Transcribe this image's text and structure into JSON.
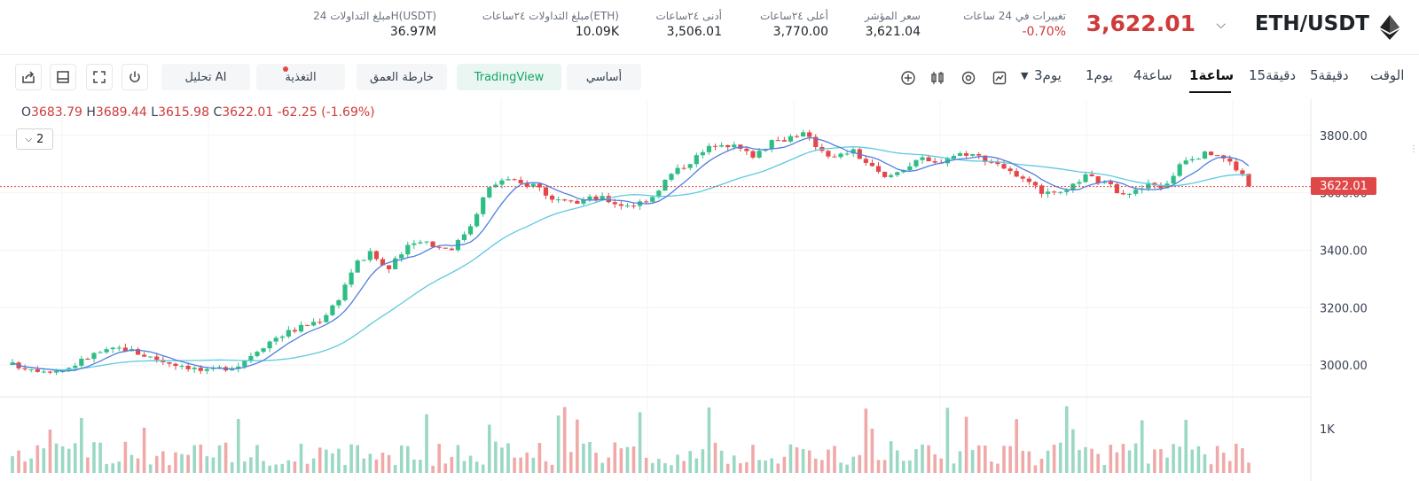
{
  "header": {
    "pair": "ETH/USDT",
    "price": "3,622.01",
    "stats": [
      {
        "label": "تغييرات في 24 ساعات",
        "value": "-0.70%",
        "negative": true
      },
      {
        "label": "سعر المؤشر",
        "value": "3,621.04"
      },
      {
        "label": "أعلى ٢٤ساعات",
        "value": "3,770.00"
      },
      {
        "label": "أدنى ٢٤ساعات",
        "value": "3,506.01"
      },
      {
        "label": "مبلغ التداولات ٢٤ساعات(ETH)",
        "value": "10.09K"
      },
      {
        "label": "مبلغ التداولات 24H(USDT)",
        "value": "36.97M"
      }
    ]
  },
  "toolbar": {
    "ai_label": "تحليل AI",
    "feed_label": "التغذية",
    "depth_label": "خارطة العمق",
    "tradingview_label": "TradingView",
    "basic_label": "أساسي",
    "timeframes": {
      "time": "الوقت",
      "m5": "5دقيقة",
      "m15": "15دقيقة",
      "h1": "1ساعة",
      "h4": "4ساعة",
      "d1": "1يوم",
      "d3": "3يوم"
    }
  },
  "chart": {
    "ohlc": {
      "o_key": "O",
      "o": "3683.79",
      "h_key": "H",
      "h": "3689.44",
      "l_key": "L",
      "l": "3615.98",
      "c_key": "C",
      "c": "3622.01",
      "change": "-62.25 (-1.69%)"
    },
    "indicator_count": "2",
    "last_price_tag": "3622.01",
    "volume_label": "1K"
  },
  "chart_data": {
    "type": "candlestick",
    "ylim": [
      2920,
      3880
    ],
    "yticks": [
      "3800.00",
      "3600.00",
      "3400.00",
      "3200.00",
      "3000.00"
    ],
    "last_price": 3622.01,
    "colors": {
      "up": "#2ebd85",
      "down": "#e34848",
      "ma_fast": "#4f7fe0",
      "ma_slow": "#5ec9e0"
    },
    "close_path": [
      [
        0,
        3000
      ],
      [
        0.025,
        2985
      ],
      [
        0.045,
        2980
      ],
      [
        0.06,
        3010
      ],
      [
        0.075,
        3040
      ],
      [
        0.1,
        3060
      ],
      [
        0.115,
        3040
      ],
      [
        0.14,
        3010
      ],
      [
        0.155,
        3000
      ],
      [
        0.175,
        2975
      ],
      [
        0.19,
        2990
      ],
      [
        0.205,
        3000
      ],
      [
        0.22,
        3050
      ],
      [
        0.24,
        3100
      ],
      [
        0.26,
        3130
      ],
      [
        0.28,
        3160
      ],
      [
        0.295,
        3230
      ],
      [
        0.31,
        3350
      ],
      [
        0.325,
        3390
      ],
      [
        0.34,
        3330
      ],
      [
        0.355,
        3400
      ],
      [
        0.37,
        3440
      ],
      [
        0.385,
        3410
      ],
      [
        0.4,
        3410
      ],
      [
        0.415,
        3490
      ],
      [
        0.43,
        3610
      ],
      [
        0.445,
        3650
      ],
      [
        0.46,
        3630
      ],
      [
        0.475,
        3630
      ],
      [
        0.49,
        3570
      ],
      [
        0.505,
        3560
      ],
      [
        0.52,
        3580
      ],
      [
        0.535,
        3580
      ],
      [
        0.55,
        3560
      ],
      [
        0.565,
        3560
      ],
      [
        0.58,
        3590
      ],
      [
        0.595,
        3660
      ],
      [
        0.61,
        3700
      ],
      [
        0.625,
        3740
      ],
      [
        0.64,
        3780
      ],
      [
        0.655,
        3760
      ],
      [
        0.67,
        3730
      ],
      [
        0.685,
        3770
      ],
      [
        0.7,
        3790
      ],
      [
        0.715,
        3810
      ],
      [
        0.73,
        3760
      ],
      [
        0.745,
        3720
      ],
      [
        0.76,
        3750
      ],
      [
        0.775,
        3700
      ],
      [
        0.79,
        3650
      ],
      [
        0.805,
        3680
      ],
      [
        0.82,
        3720
      ],
      [
        0.835,
        3700
      ],
      [
        0.85,
        3730
      ],
      [
        0.865,
        3740
      ],
      [
        0.88,
        3720
      ],
      [
        0.895,
        3700
      ],
      [
        0.91,
        3650
      ],
      [
        0.925,
        3620
      ],
      [
        0.94,
        3590
      ],
      [
        0.955,
        3600
      ],
      [
        0.97,
        3660
      ],
      [
        0.985,
        3640
      ],
      [
        1.0,
        3610
      ],
      [
        1.015,
        3600
      ],
      [
        1.03,
        3630
      ],
      [
        1.045,
        3620
      ],
      [
        1.06,
        3720
      ],
      [
        1.075,
        3730
      ],
      [
        1.09,
        3740
      ],
      [
        1.105,
        3700
      ],
      [
        1.12,
        3640
      ]
    ]
  }
}
